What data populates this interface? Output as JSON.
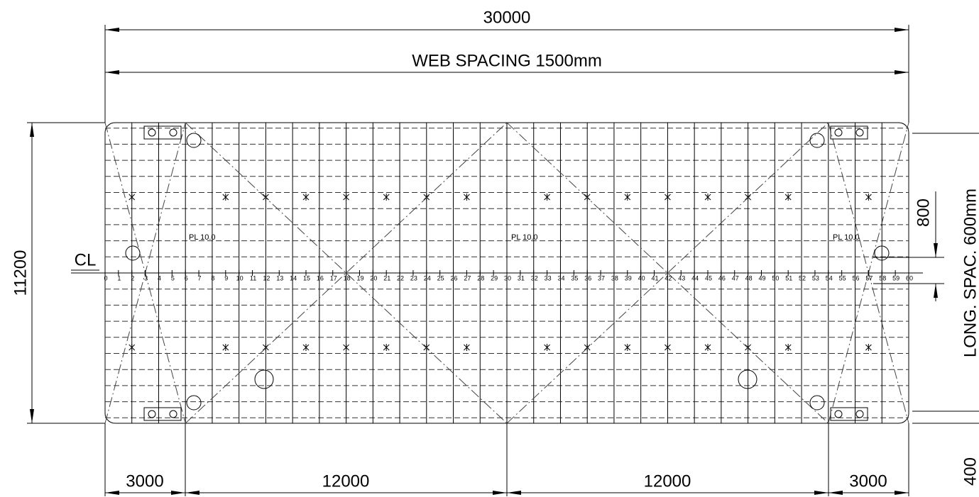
{
  "dimensions": {
    "overall_length": "30000",
    "web_spacing": "WEB SPACING 1500mm",
    "overall_width": "11200",
    "centerline": "CL",
    "stiffener_offset": "800",
    "long_spacing": "LONG. SPAC. 600mm",
    "edge_offset": "400"
  },
  "plate_labels": [
    "PL 10.0",
    "PL 10.0",
    "PL 10.0"
  ],
  "bottom_dimensions": [
    "3000",
    "12000",
    "12000",
    "3000"
  ],
  "frame_numbers": [
    0,
    1,
    2,
    3,
    4,
    5,
    6,
    7,
    8,
    9,
    10,
    11,
    12,
    13,
    14,
    15,
    16,
    17,
    18,
    19,
    20,
    21,
    22,
    23,
    24,
    25,
    26,
    27,
    28,
    29,
    30,
    31,
    32,
    33,
    34,
    35,
    36,
    37,
    38,
    39,
    40,
    41,
    42,
    43,
    44,
    45,
    46,
    47,
    48,
    49,
    50,
    51,
    52,
    53,
    54,
    55,
    56,
    57,
    58,
    59,
    60
  ]
}
